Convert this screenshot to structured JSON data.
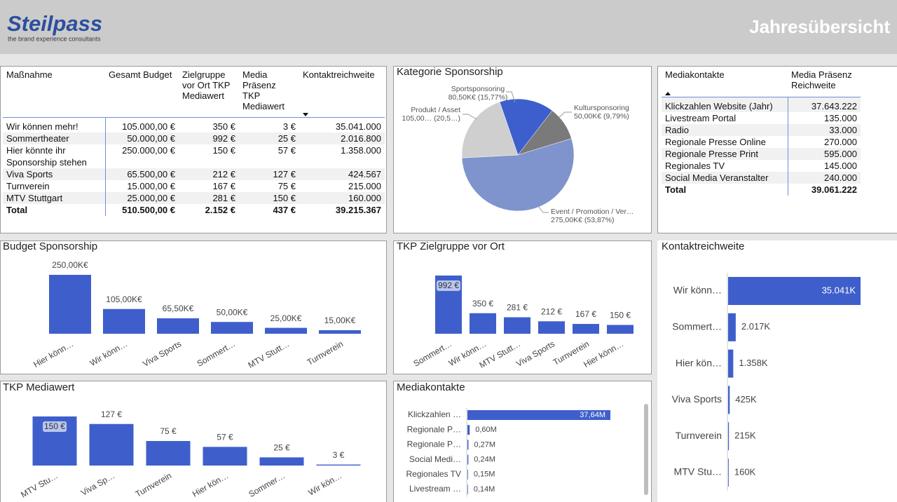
{
  "header": {
    "logo": "Steilpass",
    "tagline": "the brand experience consultants",
    "title": "Jahresübersicht"
  },
  "measures_table": {
    "columns": [
      "Maßnahme",
      "Gesamt Budget",
      "Zielgruppe vor Ort TKP Mediawert",
      "Media Präsenz TKP Mediawert",
      "Kontaktreichweite"
    ],
    "rows": [
      [
        "Wir können mehr!",
        "105.000,00 €",
        "350 €",
        "3 €",
        "35.041.000"
      ],
      [
        "Sommertheater",
        "50.000,00 €",
        "992 €",
        "25 €",
        "2.016.800"
      ],
      [
        "Hier könnte ihr Sponsorship stehen",
        "250.000,00 €",
        "150 €",
        "57 €",
        "1.358.000"
      ],
      [
        "Viva Sports",
        "65.500,00 €",
        "212 €",
        "127 €",
        "424.567"
      ],
      [
        "Turnverein",
        "15.000,00 €",
        "167 €",
        "75 €",
        "215.000"
      ],
      [
        "MTV Stuttgart",
        "25.000,00 €",
        "281 €",
        "150 €",
        "160.000"
      ]
    ],
    "total": [
      "Total",
      "510.500,00 €",
      "2.152 €",
      "437 €",
      "39.215.367"
    ]
  },
  "media_table": {
    "columns": [
      "Mediakontakte",
      "Media Präsenz Reichweite"
    ],
    "rows": [
      [
        "Klickzahlen Website (Jahr)",
        "37.643.222"
      ],
      [
        "Livestream Portal",
        "135.000"
      ],
      [
        "Radio",
        "33.000"
      ],
      [
        "Regionale Presse Online",
        "270.000"
      ],
      [
        "Regionale Presse Print",
        "595.000"
      ],
      [
        "Regionales TV",
        "145.000"
      ],
      [
        "Social Media Veranstalter",
        "240.000"
      ]
    ],
    "total": [
      "Total",
      "39.061.222"
    ]
  },
  "chart_data": [
    {
      "type": "pie",
      "title": "Kategorie Sponsorship",
      "categories": [
        "Sportsponsoring",
        "Kultursponsoring",
        "Event / Promotion / Ver…",
        "Produkt / Asset"
      ],
      "values": [
        80.5,
        50,
        275,
        105
      ],
      "value_labels": [
        "80,50K€ (15,77%)",
        "50,00K€ (9,79%)",
        "275,00K€ (53,87%)",
        "105,00… (20,5…)"
      ],
      "colors": [
        "#3d5fcd",
        "#7a7a7a",
        "#7f93cc",
        "#cfcfcf"
      ]
    },
    {
      "type": "bar",
      "title": "Budget Sponsorship",
      "categories": [
        "Hier könn…",
        "Wir könn…",
        "Viva Sports",
        "Sommert…",
        "MTV Stutt…",
        "Turnverein"
      ],
      "values": [
        250,
        105,
        65.5,
        50,
        25,
        15
      ],
      "value_labels": [
        "250,00K€",
        "105,00K€",
        "65,50K€",
        "50,00K€",
        "25,00K€",
        "15,00K€"
      ],
      "color": "#3e5fcb"
    },
    {
      "type": "bar",
      "title": "TKP Zielgruppe vor Ort",
      "categories": [
        "Sommert…",
        "Wir könn…",
        "MTV Stutt…",
        "Viva Sports",
        "Turnverein",
        "Hier könn…"
      ],
      "values": [
        992,
        350,
        281,
        212,
        167,
        150
      ],
      "value_labels": [
        "992 €",
        "350 €",
        "281 €",
        "212 €",
        "167 €",
        "150 €"
      ],
      "color": "#3e5fcb"
    },
    {
      "type": "bar",
      "title": "TKP Mediawert",
      "categories": [
        "MTV Stu…",
        "Viva Sp…",
        "Turnverein",
        "Hier kön…",
        "Sommer…",
        "Wir kön…"
      ],
      "values": [
        150,
        127,
        75,
        57,
        25,
        3
      ],
      "value_labels": [
        "150 €",
        "127 €",
        "75 €",
        "57 €",
        "25 €",
        "3 €"
      ],
      "color": "#3e5fcb"
    },
    {
      "type": "bar",
      "orientation": "horizontal",
      "title": "Mediakontakte",
      "categories": [
        "Klickzahlen …",
        "Regionale P…",
        "Regionale P…",
        "Social Medi…",
        "Regionales TV",
        "Livestream …"
      ],
      "values": [
        37.64,
        0.6,
        0.27,
        0.24,
        0.15,
        0.14
      ],
      "value_labels": [
        "37,64M",
        "0,60M",
        "0,27M",
        "0,24M",
        "0,15M",
        "0,14M"
      ],
      "color": "#3e5fcb"
    },
    {
      "type": "bar",
      "orientation": "horizontal",
      "title": "Kontaktreichweite",
      "categories": [
        "Wir könn…",
        "Sommert…",
        "Hier kön…",
        "Viva Sports",
        "Turnverein",
        "MTV Stu…"
      ],
      "values": [
        35041,
        2017,
        1358,
        425,
        215,
        160
      ],
      "value_labels": [
        "35.041K",
        "2.017K",
        "1.358K",
        "425K",
        "215K",
        "160K"
      ],
      "color": "#3e5fcb"
    }
  ]
}
